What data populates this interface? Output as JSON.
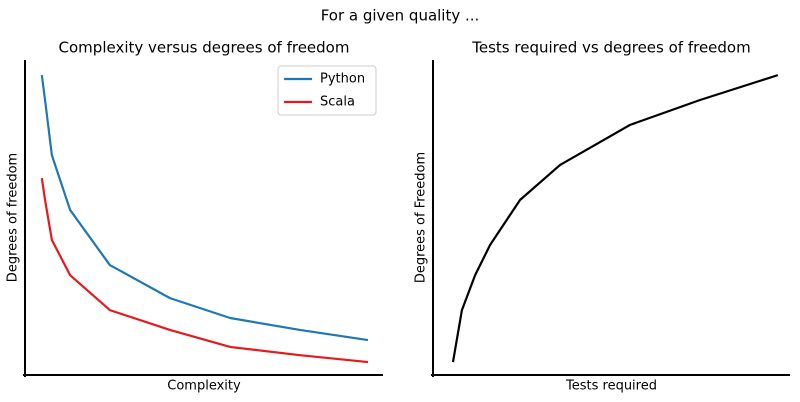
{
  "title": "For a given quality ...",
  "chart_data": [
    {
      "type": "line",
      "title": "Complexity versus degrees of freedom",
      "x_label": "Complexity",
      "y_label": "Degrees of freedom",
      "x": [
        0.47,
        0.56,
        0.75,
        1.26,
        2.37,
        4.05,
        5.73,
        7.68,
        9.58
      ],
      "series": [
        {
          "name": "Python",
          "color": "#1f77b4",
          "values": [
            9.52,
            8.73,
            6.98,
            5.24,
            3.49,
            2.44,
            1.81,
            1.43,
            1.11
          ]
        },
        {
          "name": "Scala",
          "color": "#e41a1c",
          "values": [
            6.25,
            5.56,
            4.29,
            3.17,
            2.06,
            1.43,
            0.89,
            0.63,
            0.41
          ]
        }
      ],
      "xlim": [
        0,
        10
      ],
      "ylim": [
        0,
        10
      ],
      "legend": "upper right"
    },
    {
      "type": "line",
      "title": "Tests required vs degrees of freedom",
      "x_label": "Tests required",
      "y_label": "Degrees of Freedom",
      "x": [
        0.56,
        0.81,
        1.18,
        1.6,
        2.44,
        3.56,
        5.52,
        7.48,
        9.66
      ],
      "values": [
        0.41,
        2.06,
        3.17,
        4.13,
        5.56,
        6.67,
        7.94,
        8.73,
        9.52
      ],
      "color": "#000000",
      "xlim": [
        0,
        10
      ],
      "ylim": [
        0,
        10
      ]
    }
  ]
}
